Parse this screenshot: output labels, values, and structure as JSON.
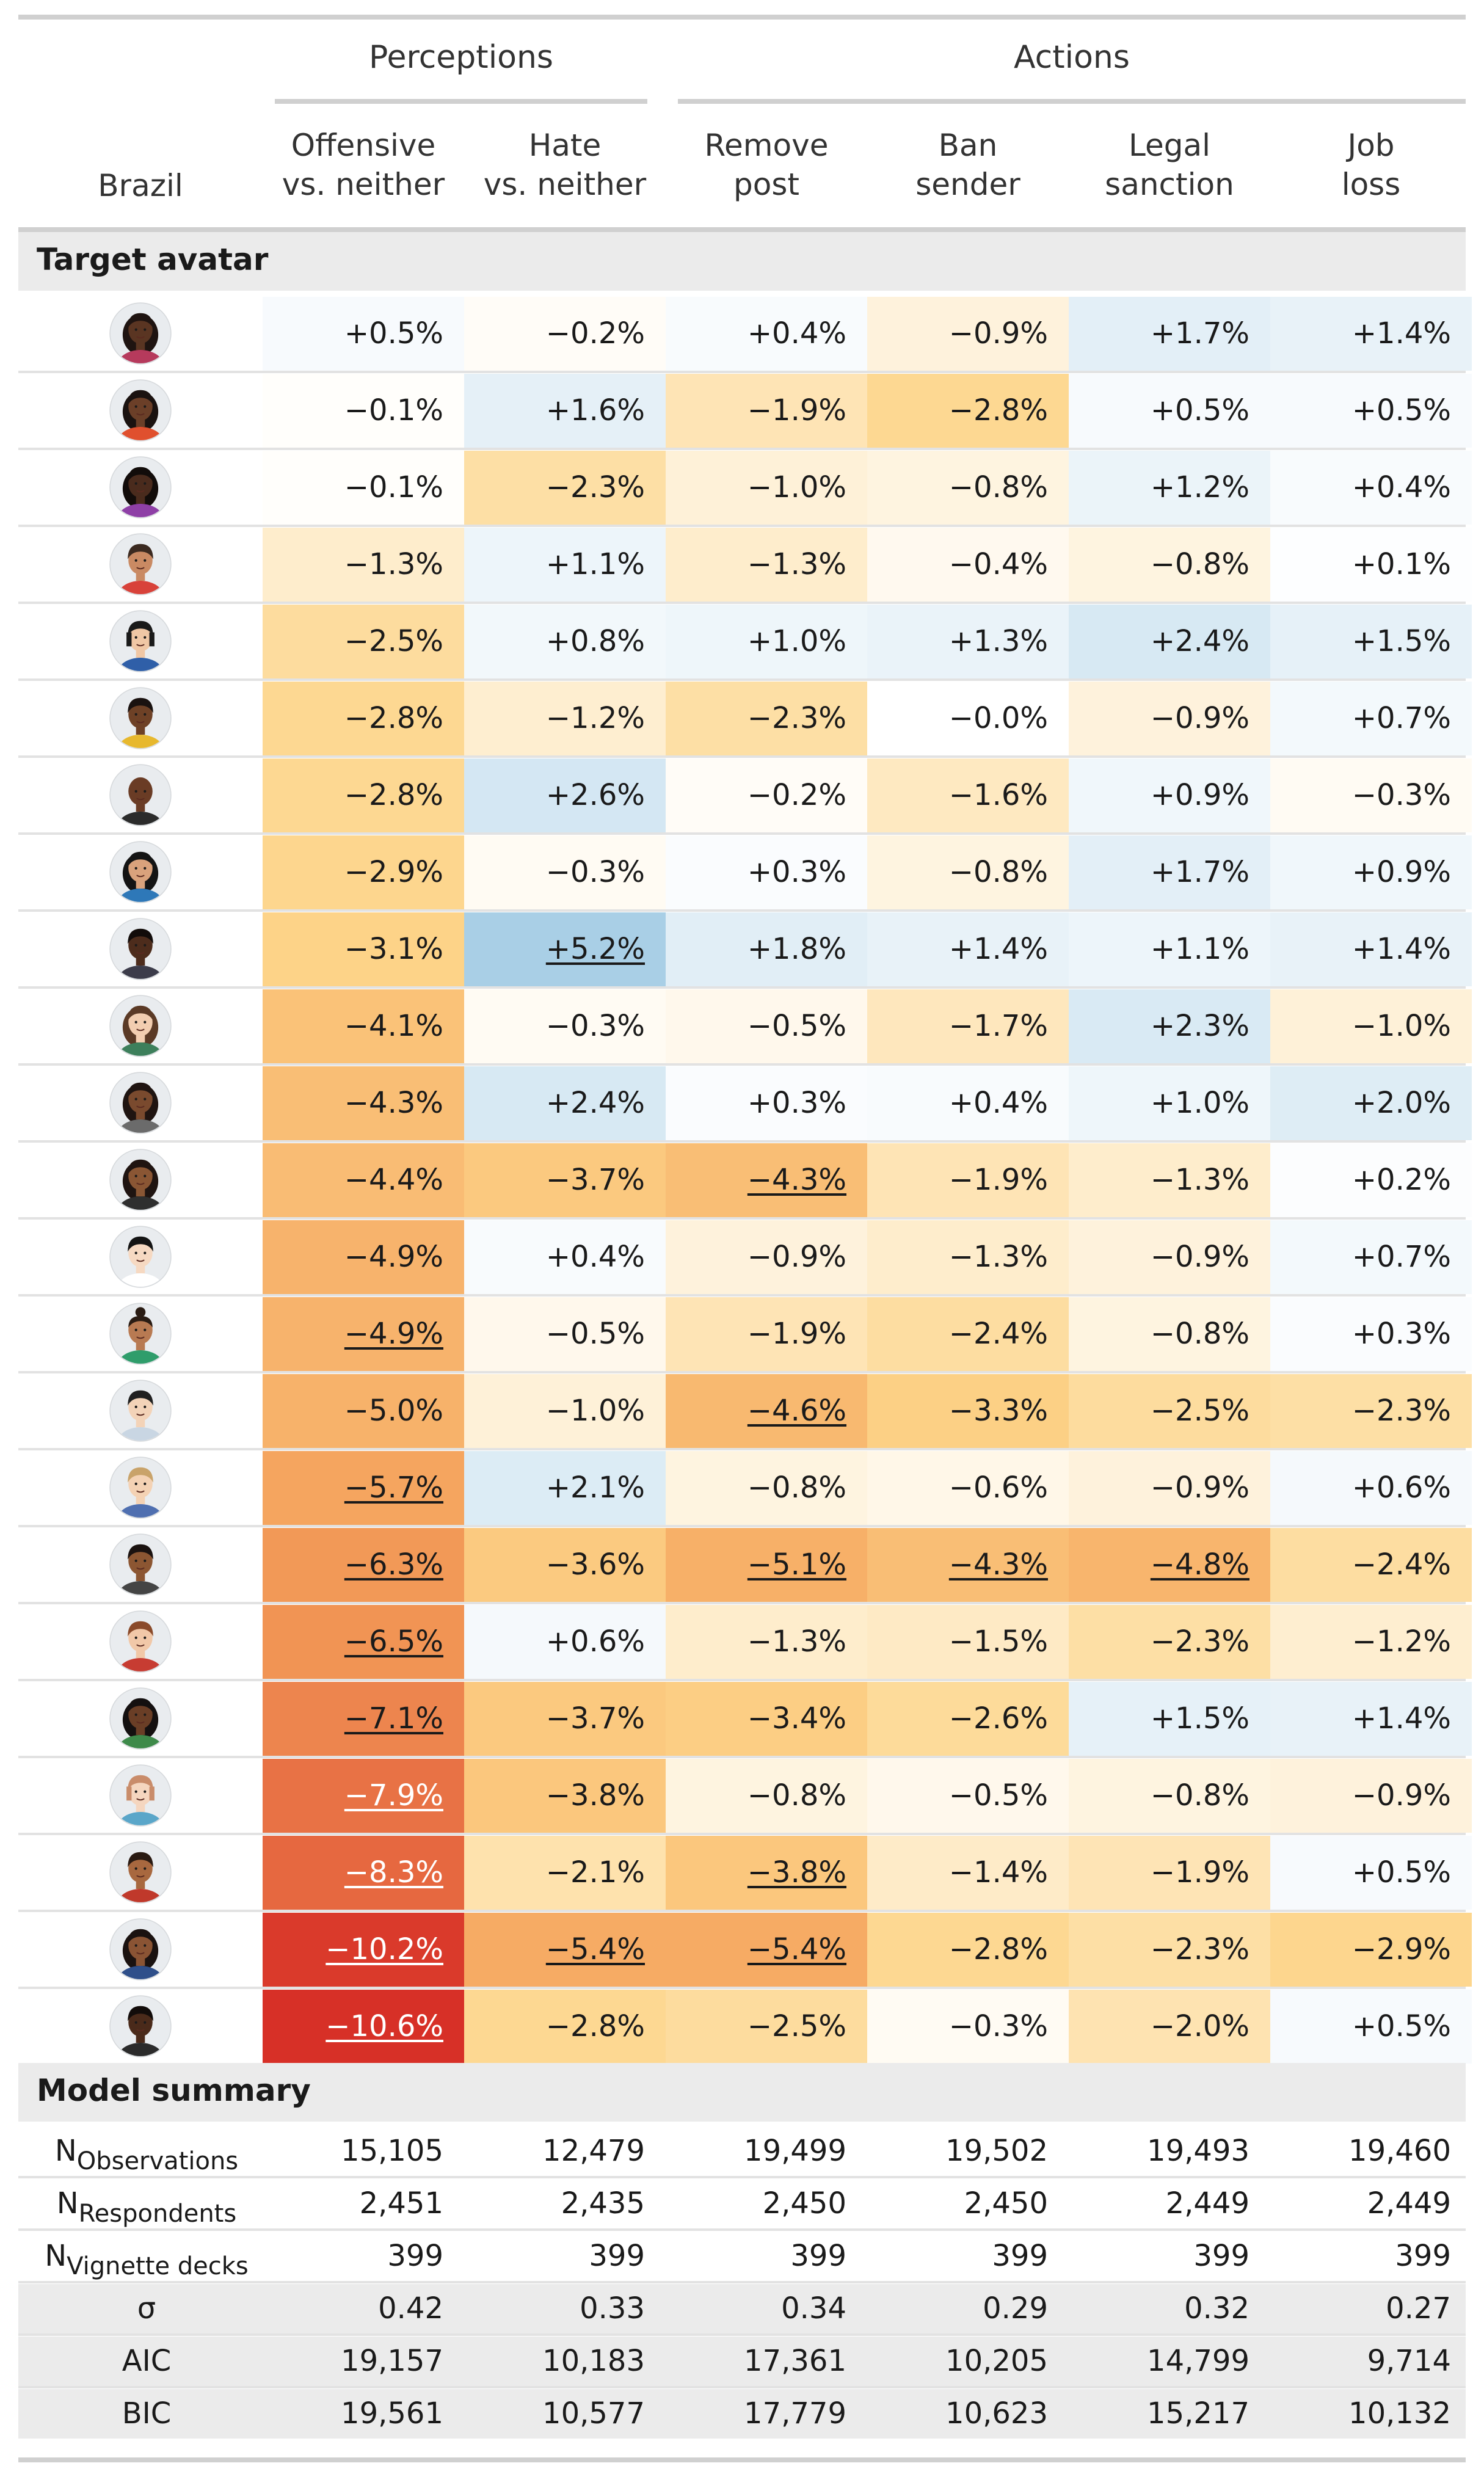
{
  "chart_data": {
    "type": "table",
    "country": "Brazil",
    "groups": [
      {
        "label": "Perceptions",
        "columns": [
          0,
          1
        ]
      },
      {
        "label": "Actions",
        "columns": [
          2,
          3,
          4,
          5
        ]
      }
    ],
    "columns": [
      {
        "line1": "Offensive",
        "line2": "vs. neither"
      },
      {
        "line1": "Hate",
        "line2": "vs. neither"
      },
      {
        "line1": "Remove",
        "line2": "post"
      },
      {
        "line1": "Ban",
        "line2": "sender"
      },
      {
        "line1": "Legal",
        "line2": "sanction"
      },
      {
        "line1": "Job",
        "line2": "loss"
      }
    ],
    "section_avatar": "Target avatar",
    "section_summary": "Model summary",
    "avatars": [
      {
        "skin": "#5a3522",
        "hair": "#1f1411",
        "shirt": "#b63a5c",
        "hair_style": "curly"
      },
      {
        "skin": "#6b3f28",
        "hair": "#1a1210",
        "shirt": "#e0502e",
        "hair_style": "curly"
      },
      {
        "skin": "#4a2b1d",
        "hair": "#120c0a",
        "shirt": "#8e3fa6",
        "hair_style": "long"
      },
      {
        "skin": "#c98a63",
        "hair": "#3b2a20",
        "shirt": "#d8423a",
        "hair_style": "short"
      },
      {
        "skin": "#f0c7a5",
        "hair": "#1a1a1a",
        "shirt": "#2f5fa8",
        "hair_style": "bob"
      },
      {
        "skin": "#6e4126",
        "hair": "#1a1210",
        "shirt": "#e7b82e",
        "hair_style": "short"
      },
      {
        "skin": "#6a3c25",
        "hair": "#1a1210",
        "shirt": "#2b2b2b",
        "hair_style": "bald"
      },
      {
        "skin": "#d9a27c",
        "hair": "#141414",
        "shirt": "#2e78b8",
        "hair_style": "long"
      },
      {
        "skin": "#4d2c1c",
        "hair": "#120c0a",
        "shirt": "#3c3c4a",
        "hair_style": "short"
      },
      {
        "skin": "#f2cdb0",
        "hair": "#5b3a26",
        "shirt": "#3d7f5b",
        "hair_style": "long"
      },
      {
        "skin": "#7a4a2e",
        "hair": "#1f1411",
        "shirt": "#6b6b6b",
        "hair_style": "curly"
      },
      {
        "skin": "#8a5634",
        "hair": "#1f1411",
        "shirt": "#2f2f2f",
        "hair_style": "curly"
      },
      {
        "skin": "#f6d9c2",
        "hair": "#141414",
        "shirt": "#ffffff",
        "hair_style": "short"
      },
      {
        "skin": "#b87a52",
        "hair": "#2a1c14",
        "shirt": "#2f9d6b",
        "hair_style": "bun"
      },
      {
        "skin": "#f3d3b8",
        "hair": "#202020",
        "shirt": "#c9d6e3",
        "hair_style": "short"
      },
      {
        "skin": "#f4d2b4",
        "hair": "#c9a36a",
        "shirt": "#4f6fb0",
        "hair_style": "short"
      },
      {
        "skin": "#8c5632",
        "hair": "#1a1210",
        "shirt": "#444444",
        "hair_style": "short"
      },
      {
        "skin": "#f1c8a8",
        "hair": "#8a4a2a",
        "shirt": "#c73c32",
        "hair_style": "short"
      },
      {
        "skin": "#6a3e26",
        "hair": "#141010",
        "shirt": "#3e8a4a",
        "hair_style": "long"
      },
      {
        "skin": "#f5d6bf",
        "hair": "#c98c6a",
        "shirt": "#5aa6c9",
        "hair_style": "bob"
      },
      {
        "skin": "#a8683f",
        "hair": "#2a1a12",
        "shirt": "#c0392b",
        "hair_style": "short"
      },
      {
        "skin": "#8a5434",
        "hair": "#1a1210",
        "shirt": "#2f4f8a",
        "hair_style": "curly"
      },
      {
        "skin": "#4a2a1a",
        "hair": "#120c0a",
        "shirt": "#2b2b2b",
        "hair_style": "short"
      }
    ],
    "rows": [
      {
        "values": [
          0.5,
          -0.2,
          0.4,
          -0.9,
          1.7,
          1.4
        ],
        "labels": [
          "+0.5%",
          "−0.2%",
          "+0.4%",
          "−0.9%",
          "+1.7%",
          "+1.4%"
        ],
        "sig": [
          false,
          false,
          false,
          false,
          false,
          false
        ]
      },
      {
        "values": [
          -0.1,
          1.6,
          -1.9,
          -2.8,
          0.5,
          0.5
        ],
        "labels": [
          "−0.1%",
          "+1.6%",
          "−1.9%",
          "−2.8%",
          "+0.5%",
          "+0.5%"
        ],
        "sig": [
          false,
          false,
          false,
          false,
          false,
          false
        ]
      },
      {
        "values": [
          -0.1,
          -2.3,
          -1.0,
          -0.8,
          1.2,
          0.4
        ],
        "labels": [
          "−0.1%",
          "−2.3%",
          "−1.0%",
          "−0.8%",
          "+1.2%",
          "+0.4%"
        ],
        "sig": [
          false,
          false,
          false,
          false,
          false,
          false
        ]
      },
      {
        "values": [
          -1.3,
          1.1,
          -1.3,
          -0.4,
          -0.8,
          0.1
        ],
        "labels": [
          "−1.3%",
          "+1.1%",
          "−1.3%",
          "−0.4%",
          "−0.8%",
          "+0.1%"
        ],
        "sig": [
          false,
          false,
          false,
          false,
          false,
          false
        ]
      },
      {
        "values": [
          -2.5,
          0.8,
          1.0,
          1.3,
          2.4,
          1.5
        ],
        "labels": [
          "−2.5%",
          "+0.8%",
          "+1.0%",
          "+1.3%",
          "+2.4%",
          "+1.5%"
        ],
        "sig": [
          false,
          false,
          false,
          false,
          false,
          false
        ]
      },
      {
        "values": [
          -2.8,
          -1.2,
          -2.3,
          -0.0,
          -0.9,
          0.7
        ],
        "labels": [
          "−2.8%",
          "−1.2%",
          "−2.3%",
          "−0.0%",
          "−0.9%",
          "+0.7%"
        ],
        "sig": [
          false,
          false,
          false,
          false,
          false,
          false
        ]
      },
      {
        "values": [
          -2.8,
          2.6,
          -0.2,
          -1.6,
          0.9,
          -0.3
        ],
        "labels": [
          "−2.8%",
          "+2.6%",
          "−0.2%",
          "−1.6%",
          "+0.9%",
          "−0.3%"
        ],
        "sig": [
          false,
          false,
          false,
          false,
          false,
          false
        ]
      },
      {
        "values": [
          -2.9,
          -0.3,
          0.3,
          -0.8,
          1.7,
          0.9
        ],
        "labels": [
          "−2.9%",
          "−0.3%",
          "+0.3%",
          "−0.8%",
          "+1.7%",
          "+0.9%"
        ],
        "sig": [
          false,
          false,
          false,
          false,
          false,
          false
        ]
      },
      {
        "values": [
          -3.1,
          5.2,
          1.8,
          1.4,
          1.1,
          1.4
        ],
        "labels": [
          "−3.1%",
          "+5.2%",
          "+1.8%",
          "+1.4%",
          "+1.1%",
          "+1.4%"
        ],
        "sig": [
          false,
          true,
          false,
          false,
          false,
          false
        ]
      },
      {
        "values": [
          -4.1,
          -0.3,
          -0.5,
          -1.7,
          2.3,
          -1.0
        ],
        "labels": [
          "−4.1%",
          "−0.3%",
          "−0.5%",
          "−1.7%",
          "+2.3%",
          "−1.0%"
        ],
        "sig": [
          false,
          false,
          false,
          false,
          false,
          false
        ]
      },
      {
        "values": [
          -4.3,
          2.4,
          0.3,
          0.4,
          1.0,
          2.0
        ],
        "labels": [
          "−4.3%",
          "+2.4%",
          "+0.3%",
          "+0.4%",
          "+1.0%",
          "+2.0%"
        ],
        "sig": [
          false,
          false,
          false,
          false,
          false,
          false
        ]
      },
      {
        "values": [
          -4.4,
          -3.7,
          -4.3,
          -1.9,
          -1.3,
          0.2
        ],
        "labels": [
          "−4.4%",
          "−3.7%",
          "−4.3%",
          "−1.9%",
          "−1.3%",
          "+0.2%"
        ],
        "sig": [
          false,
          false,
          true,
          false,
          false,
          false
        ]
      },
      {
        "values": [
          -4.9,
          0.4,
          -0.9,
          -1.3,
          -0.9,
          0.7
        ],
        "labels": [
          "−4.9%",
          "+0.4%",
          "−0.9%",
          "−1.3%",
          "−0.9%",
          "+0.7%"
        ],
        "sig": [
          false,
          false,
          false,
          false,
          false,
          false
        ]
      },
      {
        "values": [
          -4.9,
          -0.5,
          -1.9,
          -2.4,
          -0.8,
          0.3
        ],
        "labels": [
          "−4.9%",
          "−0.5%",
          "−1.9%",
          "−2.4%",
          "−0.8%",
          "+0.3%"
        ],
        "sig": [
          true,
          false,
          false,
          false,
          false,
          false
        ]
      },
      {
        "values": [
          -5.0,
          -1.0,
          -4.6,
          -3.3,
          -2.5,
          -2.3
        ],
        "labels": [
          "−5.0%",
          "−1.0%",
          "−4.6%",
          "−3.3%",
          "−2.5%",
          "−2.3%"
        ],
        "sig": [
          false,
          false,
          true,
          false,
          false,
          false
        ]
      },
      {
        "values": [
          -5.7,
          2.1,
          -0.8,
          -0.6,
          -0.9,
          0.6
        ],
        "labels": [
          "−5.7%",
          "+2.1%",
          "−0.8%",
          "−0.6%",
          "−0.9%",
          "+0.6%"
        ],
        "sig": [
          true,
          false,
          false,
          false,
          false,
          false
        ]
      },
      {
        "values": [
          -6.3,
          -3.6,
          -5.1,
          -4.3,
          -4.8,
          -2.4
        ],
        "labels": [
          "−6.3%",
          "−3.6%",
          "−5.1%",
          "−4.3%",
          "−4.8%",
          "−2.4%"
        ],
        "sig": [
          true,
          false,
          true,
          true,
          true,
          false
        ]
      },
      {
        "values": [
          -6.5,
          0.6,
          -1.3,
          -1.5,
          -2.3,
          -1.2
        ],
        "labels": [
          "−6.5%",
          "+0.6%",
          "−1.3%",
          "−1.5%",
          "−2.3%",
          "−1.2%"
        ],
        "sig": [
          true,
          false,
          false,
          false,
          false,
          false
        ]
      },
      {
        "values": [
          -7.1,
          -3.7,
          -3.4,
          -2.6,
          1.5,
          1.4
        ],
        "labels": [
          "−7.1%",
          "−3.7%",
          "−3.4%",
          "−2.6%",
          "+1.5%",
          "+1.4%"
        ],
        "sig": [
          true,
          false,
          false,
          false,
          false,
          false
        ]
      },
      {
        "values": [
          -7.9,
          -3.8,
          -0.8,
          -0.5,
          -0.8,
          -0.9
        ],
        "labels": [
          "−7.9%",
          "−3.8%",
          "−0.8%",
          "−0.5%",
          "−0.8%",
          "−0.9%"
        ],
        "sig": [
          true,
          false,
          false,
          false,
          false,
          false
        ]
      },
      {
        "values": [
          -8.3,
          -2.1,
          -3.8,
          -1.4,
          -1.9,
          0.5
        ],
        "labels": [
          "−8.3%",
          "−2.1%",
          "−3.8%",
          "−1.4%",
          "−1.9%",
          "+0.5%"
        ],
        "sig": [
          true,
          false,
          true,
          false,
          false,
          false
        ]
      },
      {
        "values": [
          -10.2,
          -5.4,
          -5.4,
          -2.8,
          -2.3,
          -2.9
        ],
        "labels": [
          "−10.2%",
          "−5.4%",
          "−5.4%",
          "−2.8%",
          "−2.3%",
          "−2.9%"
        ],
        "sig": [
          true,
          true,
          true,
          false,
          false,
          false
        ]
      },
      {
        "values": [
          -10.6,
          -2.8,
          -2.5,
          -0.3,
          -2.0,
          0.5
        ],
        "labels": [
          "−10.6%",
          "−2.8%",
          "−2.5%",
          "−0.3%",
          "−2.0%",
          "+0.5%"
        ],
        "sig": [
          true,
          false,
          false,
          false,
          false,
          false
        ]
      }
    ],
    "summary": [
      {
        "label": "N",
        "sub": "Observations",
        "values": [
          "15,105",
          "12,479",
          "19,499",
          "19,502",
          "19,493",
          "19,460"
        ]
      },
      {
        "label": "N",
        "sub": "Respondents",
        "values": [
          "2,451",
          "2,435",
          "2,450",
          "2,450",
          "2,449",
          "2,449"
        ]
      },
      {
        "label": "N",
        "sub": "Vignette decks",
        "values": [
          "399",
          "399",
          "399",
          "399",
          "399",
          "399"
        ]
      },
      {
        "label": "σ",
        "sub": "",
        "values": [
          "0.42",
          "0.33",
          "0.34",
          "0.29",
          "0.32",
          "0.27"
        ]
      },
      {
        "label": "AIC",
        "sub": "",
        "values": [
          "19,157",
          "10,183",
          "17,361",
          "10,205",
          "14,799",
          "9,714"
        ]
      },
      {
        "label": "BIC",
        "sub": "",
        "values": [
          "19,561",
          "10,577",
          "17,779",
          "10,623",
          "15,217",
          "10,132"
        ]
      }
    ],
    "colors": {
      "negative_strong": "#d73027",
      "negative_mid": "#f4a05a",
      "negative_light": "#fdd58a",
      "positive_strong": "#a9cfe6",
      "neutral": "#ffffff"
    }
  }
}
